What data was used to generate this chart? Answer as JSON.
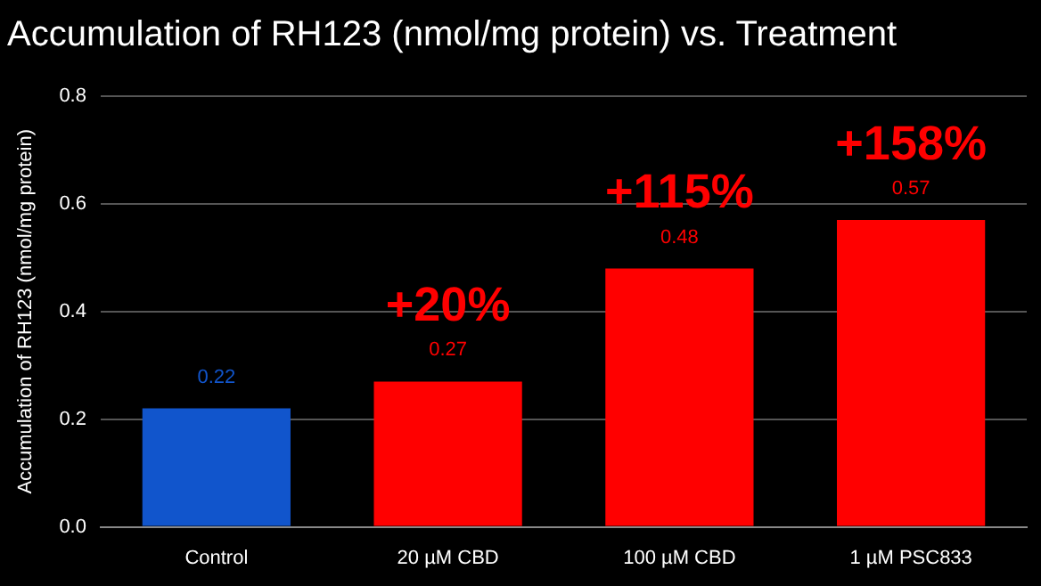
{
  "chart_data": {
    "type": "bar",
    "title": "Accumulation of RH123 (nmol/mg protein) vs. Treatment",
    "ylabel": "Accumulation of RH123 (nmol/mg protein)",
    "categories": [
      "Control",
      "20 µM CBD",
      "100 µM CBD",
      "1 µM PSC833"
    ],
    "values": [
      0.22,
      0.27,
      0.48,
      0.57
    ],
    "colors": [
      "#1155cc",
      "#ff0000",
      "#ff0000",
      "#ff0000"
    ],
    "ylim": [
      0,
      0.8
    ],
    "yticks": [
      {
        "value": 0,
        "label": "0.0"
      },
      {
        "value": 0.2,
        "label": "0.2"
      },
      {
        "value": 0.4,
        "label": "0.4"
      },
      {
        "value": 0.6,
        "label": "0.6"
      },
      {
        "value": 0.8,
        "label": "0.8"
      }
    ],
    "grid": "y",
    "legend": false,
    "data_labels": true,
    "annotations": [
      {
        "text": "+20%",
        "x": "20 µM CBD",
        "y": 0.27
      },
      {
        "text": "+115%",
        "x": "100 µM CBD",
        "y": 0.48
      },
      {
        "text": "+158%",
        "x": "1 µM PSC833",
        "y": 0.57
      }
    ]
  }
}
